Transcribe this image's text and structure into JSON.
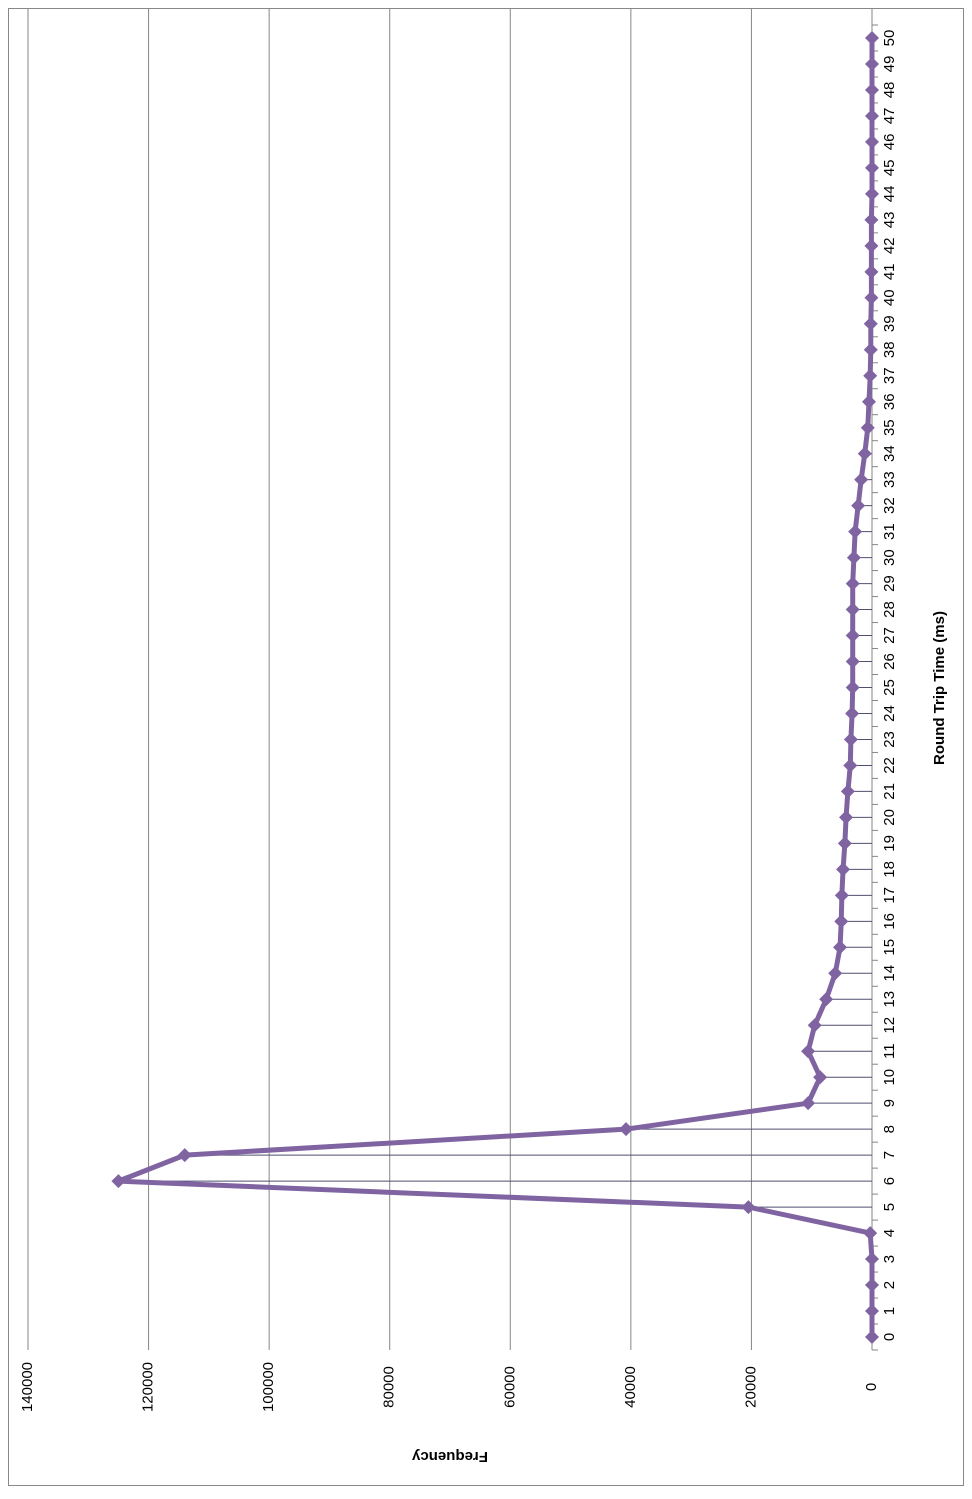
{
  "chart_data": {
    "type": "line",
    "x_label": "Round Trip Time (ms)",
    "y_label": "Frequency",
    "categories": [
      "0",
      "1",
      "2",
      "3",
      "4",
      "5",
      "6",
      "7",
      "8",
      "9",
      "10",
      "11",
      "12",
      "13",
      "14",
      "15",
      "16",
      "17",
      "18",
      "19",
      "20",
      "21",
      "22",
      "23",
      "24",
      "25",
      "26",
      "27",
      "28",
      "29",
      "30",
      "31",
      "32",
      "33",
      "34",
      "35",
      "36",
      "37",
      "38",
      "39",
      "40",
      "41",
      "42",
      "43",
      "44",
      "45",
      "46",
      "47",
      "48",
      "49",
      "50"
    ],
    "values": [
      0,
      0,
      0,
      0,
      300,
      20500,
      125000,
      114000,
      40800,
      10600,
      8600,
      10600,
      9500,
      7600,
      6100,
      5300,
      5100,
      5000,
      4800,
      4500,
      4300,
      4000,
      3600,
      3500,
      3300,
      3200,
      3200,
      3200,
      3200,
      3200,
      3000,
      2800,
      2300,
      1800,
      1200,
      700,
      500,
      300,
      200,
      200,
      100,
      100,
      100,
      100,
      0,
      0,
      0,
      0,
      0,
      0,
      0
    ],
    "color": "#8064a2",
    "ylim": [
      0,
      140000
    ],
    "yticks": [
      0,
      20000,
      40000,
      60000,
      80000,
      100000,
      120000,
      140000
    ],
    "grid": true,
    "drop_lines": true
  }
}
